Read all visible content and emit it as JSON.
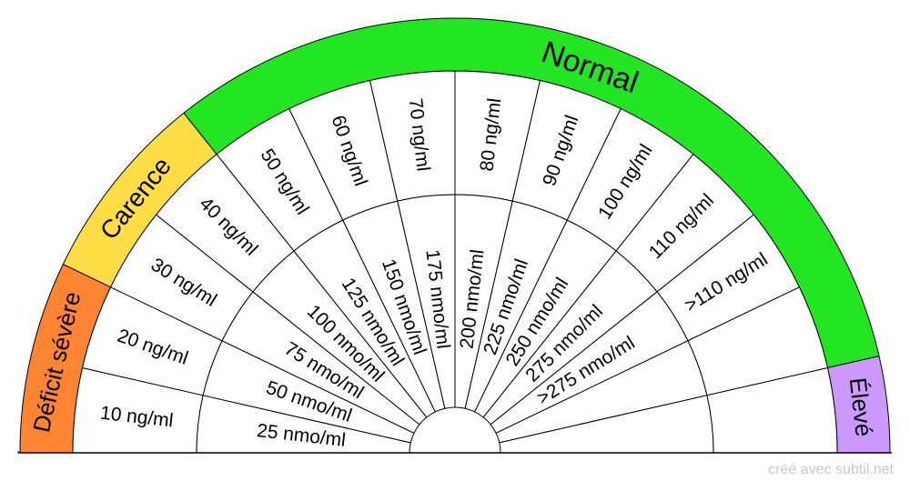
{
  "zones": [
    {
      "label": "Déficit sévère",
      "color": "#ff8533",
      "from": 0,
      "to": 2
    },
    {
      "label": "Carence",
      "color": "#ffdd44",
      "from": 2,
      "to": 4
    },
    {
      "label": "Normal",
      "color": "#22e622",
      "from": 4,
      "to": 13
    },
    {
      "label": "Élevé",
      "color": "#cc99ff",
      "from": 13,
      "to": 14
    }
  ],
  "outer_labels": [
    "10 ng/ml",
    "20 ng/ml",
    "30 ng/ml",
    "40 ng/ml",
    "50 ng/ml",
    "60 ng/ml",
    "70 ng/ml",
    "80 ng/ml",
    "90 ng/ml",
    "100 ng/ml",
    "110 ng/ml",
    ">110 ng/ml"
  ],
  "inner_labels": [
    "25 nmo/ml",
    "50 nmo/ml",
    "75 nmo/ml",
    "100 nmo/ml",
    "125 nmo/ml",
    "150 nmo/ml",
    "175 nmo/ml",
    "200 nmo/ml",
    "225 nmo/ml",
    "250 nmo/ml",
    "275 nmo/ml",
    ">275 nmo/ml"
  ],
  "credit": "créé avec subtil.net"
}
